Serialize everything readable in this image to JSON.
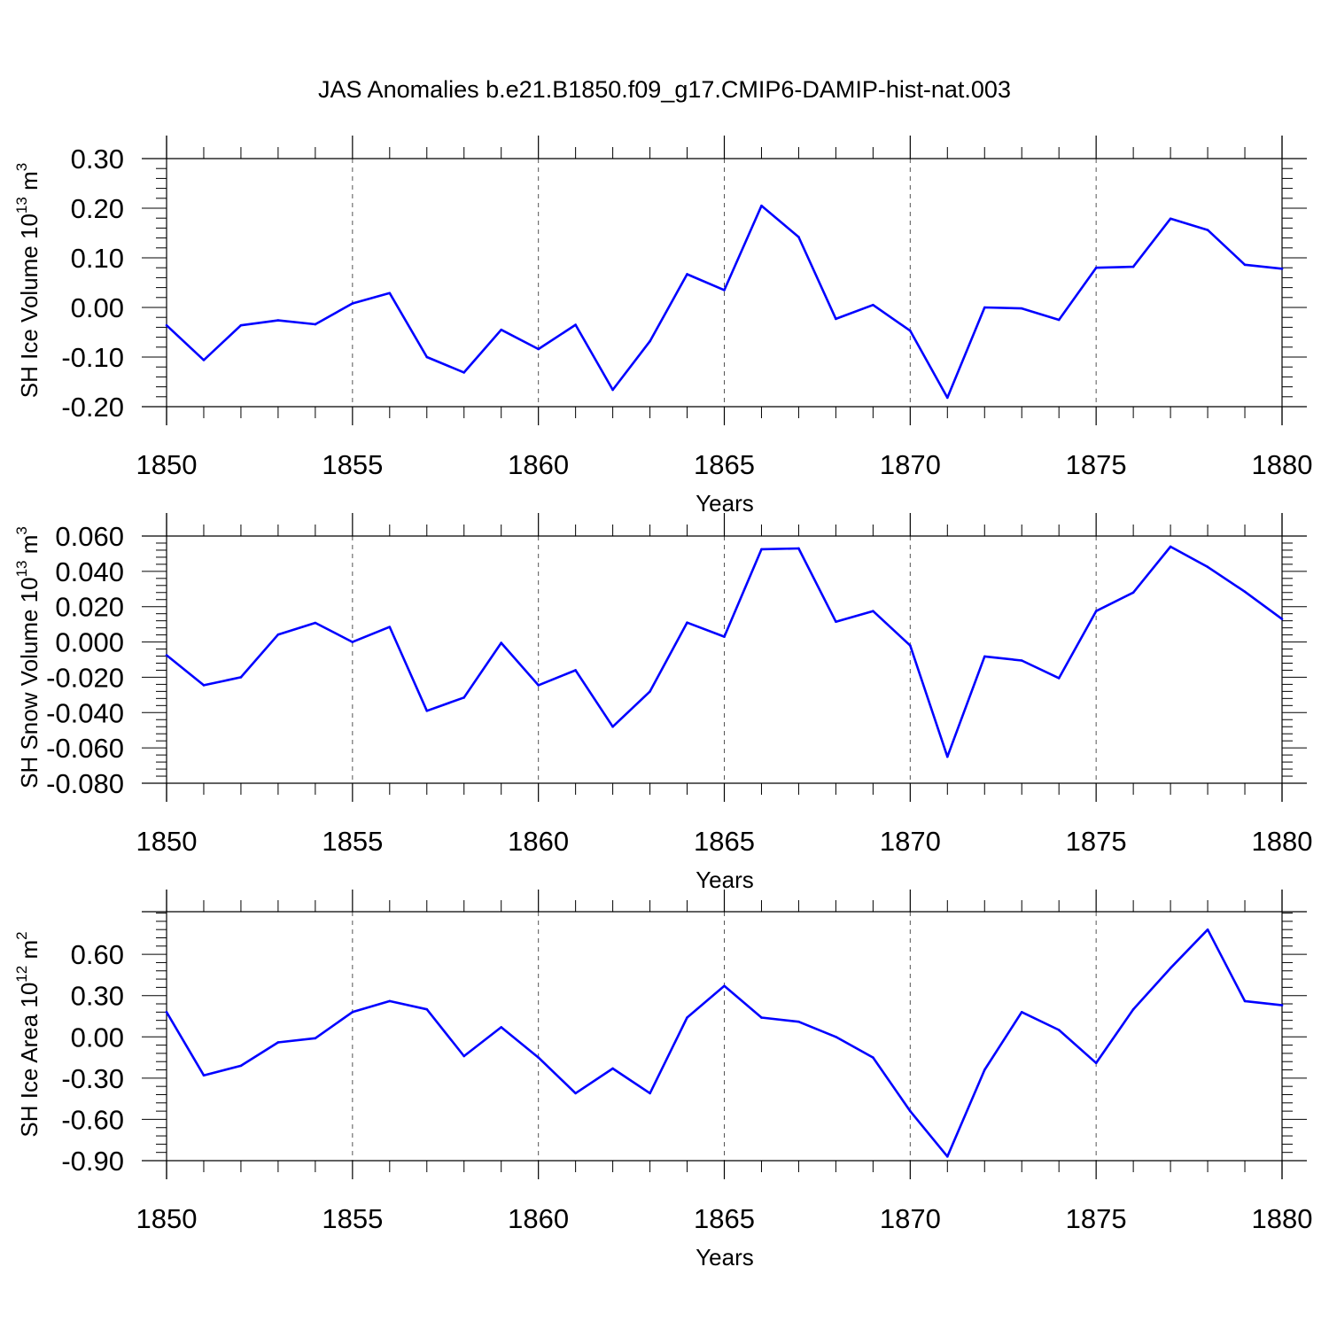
{
  "page": {
    "title": "JAS Anomalies b.e21.B1850.f09_g17.CMIP6-DAMIP-hist-nat.003"
  },
  "colors": {
    "line": "#0000ff",
    "axis": "#000000",
    "grid": "#555555"
  },
  "chart_data": [
    {
      "type": "line",
      "ylabel": "SH Ice Volume",
      "ylabel_unit": "10",
      "ylabel_exp": "13",
      "ylabel_unit_tail": " m",
      "ylabel_unit_exp": "3",
      "xlabel": "Years",
      "xlim": [
        1850,
        1880
      ],
      "ylim": [
        -0.2,
        0.3
      ],
      "xticks": [
        1850,
        1855,
        1860,
        1865,
        1870,
        1875,
        1880
      ],
      "xtick_labels": [
        "1850",
        "1855",
        "1860",
        "1865",
        "1870",
        "1875",
        "1880"
      ],
      "yticks": [
        -0.2,
        -0.1,
        0.0,
        0.1,
        0.2,
        0.3
      ],
      "ytick_labels": [
        "-0.20",
        "-0.10",
        "0.00",
        "0.10",
        "0.20",
        "0.30"
      ],
      "grid": "vertical dashed at major x ticks",
      "series": [
        {
          "x": [
            1850,
            1851,
            1852,
            1853,
            1854,
            1855,
            1856,
            1857,
            1858,
            1859,
            1860,
            1861,
            1862,
            1863,
            1864,
            1865,
            1866,
            1867,
            1868,
            1869,
            1870,
            1871,
            1872,
            1873,
            1874,
            1875,
            1876,
            1877,
            1878,
            1879,
            1880
          ],
          "values": [
            -0.036,
            -0.106,
            -0.036,
            -0.026,
            -0.034,
            0.008,
            0.029,
            -0.1,
            -0.131,
            -0.045,
            -0.084,
            -0.035,
            -0.166,
            -0.068,
            0.067,
            0.035,
            0.205,
            0.142,
            -0.023,
            0.005,
            -0.047,
            -0.182,
            0.0,
            -0.002,
            -0.025,
            0.08,
            0.082,
            0.179,
            0.156,
            0.086,
            0.078
          ]
        }
      ]
    },
    {
      "type": "line",
      "ylabel": "SH Snow Volume",
      "ylabel_unit": "10",
      "ylabel_exp": "13",
      "ylabel_unit_tail": " m",
      "ylabel_unit_exp": "3",
      "xlabel": "Years",
      "xlim": [
        1850,
        1880
      ],
      "ylim": [
        -0.08,
        0.06
      ],
      "xticks": [
        1850,
        1855,
        1860,
        1865,
        1870,
        1875,
        1880
      ],
      "xtick_labels": [
        "1850",
        "1855",
        "1860",
        "1865",
        "1870",
        "1875",
        "1880"
      ],
      "yticks": [
        -0.08,
        -0.06,
        -0.04,
        -0.02,
        0.0,
        0.02,
        0.04,
        0.06
      ],
      "ytick_labels": [
        "-0.080",
        "-0.060",
        "-0.040",
        "-0.020",
        "0.000",
        "0.020",
        "0.040",
        "0.060"
      ],
      "grid": "vertical dashed at major x ticks",
      "series": [
        {
          "x": [
            1850,
            1851,
            1852,
            1853,
            1854,
            1855,
            1856,
            1857,
            1858,
            1859,
            1860,
            1861,
            1862,
            1863,
            1864,
            1865,
            1866,
            1867,
            1868,
            1869,
            1870,
            1871,
            1872,
            1873,
            1874,
            1875,
            1876,
            1877,
            1878,
            1879,
            1880
          ],
          "values": [
            -0.0075,
            -0.0245,
            -0.02,
            0.0042,
            0.0108,
            0.0,
            0.0085,
            -0.039,
            -0.0315,
            -0.0005,
            -0.0245,
            -0.016,
            -0.048,
            -0.028,
            0.011,
            0.003,
            0.0525,
            0.053,
            0.0115,
            0.0175,
            -0.002,
            -0.065,
            -0.0082,
            -0.0105,
            -0.0205,
            0.0175,
            0.028,
            0.054,
            0.0425,
            0.0285,
            0.013
          ]
        }
      ]
    },
    {
      "type": "line",
      "ylabel": "SH Ice Area",
      "ylabel_unit": "10",
      "ylabel_exp": "12",
      "ylabel_unit_tail": " m",
      "ylabel_unit_exp": "2",
      "xlabel": "Years",
      "xlim": [
        1850,
        1880
      ],
      "ylim": [
        -0.9,
        0.91
      ],
      "xticks": [
        1850,
        1855,
        1860,
        1865,
        1870,
        1875,
        1880
      ],
      "xtick_labels": [
        "1850",
        "1855",
        "1860",
        "1865",
        "1870",
        "1875",
        "1880"
      ],
      "yticks": [
        -0.9,
        -0.6,
        -0.3,
        0.0,
        0.3,
        0.6
      ],
      "ytick_labels": [
        "-0.90",
        "-0.60",
        "-0.30",
        "0.00",
        "0.30",
        "0.60"
      ],
      "grid": "vertical dashed at major x ticks",
      "series": [
        {
          "x": [
            1850,
            1851,
            1852,
            1853,
            1854,
            1855,
            1856,
            1857,
            1858,
            1859,
            1860,
            1861,
            1862,
            1863,
            1864,
            1865,
            1866,
            1867,
            1868,
            1869,
            1870,
            1871,
            1872,
            1873,
            1874,
            1875,
            1876,
            1877,
            1878,
            1879,
            1880
          ],
          "values": [
            0.18,
            -0.28,
            -0.21,
            -0.04,
            -0.01,
            0.18,
            0.26,
            0.2,
            -0.14,
            0.07,
            -0.15,
            -0.41,
            -0.23,
            -0.41,
            0.14,
            0.37,
            0.14,
            0.11,
            0.0,
            -0.15,
            -0.54,
            -0.87,
            -0.24,
            0.18,
            0.05,
            -0.19,
            0.2,
            0.5,
            0.78,
            0.26,
            0.23
          ]
        }
      ]
    }
  ]
}
